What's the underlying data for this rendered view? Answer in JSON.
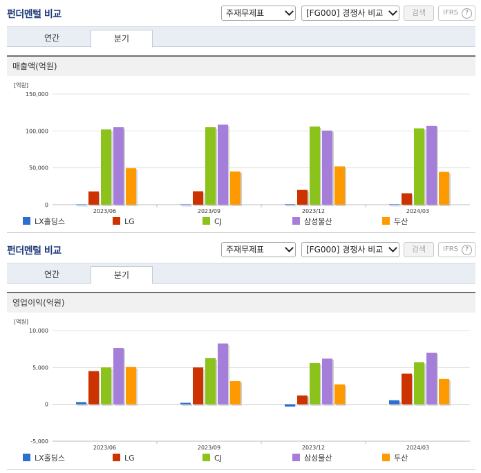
{
  "colors": {
    "lx": "#2c6fd1",
    "lg": "#cc3300",
    "cj": "#8cc21c",
    "samsung": "#a47ed8",
    "doosan": "#ff9900"
  },
  "panels": [
    {
      "title": "펀더멘털 비교",
      "select1": "주재무제표",
      "select2": "[FG000] 경쟁사 비교",
      "search_btn": "검색",
      "ifrs": "IFRS",
      "ifrs_help": "?",
      "tabs": [
        "연간",
        "분기"
      ],
      "section": "매출액(억원)",
      "unit": "[억원]",
      "chart_data": {
        "type": "bar",
        "categories": [
          "2023/06",
          "2023/09",
          "2023/12",
          "2024/03"
        ],
        "ylim": [
          0,
          150000
        ],
        "yticks": [
          "0",
          "50,000",
          "100,000",
          "150,000"
        ],
        "ytick_values": [
          0,
          50000,
          100000,
          150000
        ],
        "series": [
          {
            "name": "LX홀딩스",
            "values": [
              500,
              500,
              700,
              600
            ]
          },
          {
            "name": "LG",
            "values": [
              18000,
              18200,
              20000,
              15500
            ]
          },
          {
            "name": "CJ",
            "values": [
              102000,
              105000,
              106000,
              103500
            ]
          },
          {
            "name": "삼성물산",
            "values": [
              105000,
              108500,
              100500,
              107000
            ]
          },
          {
            "name": "두산",
            "values": [
              49500,
              45000,
              52000,
              44500
            ]
          }
        ],
        "legend_position": "bottom"
      }
    },
    {
      "title": "펀더멘털 비교",
      "select1": "주재무제표",
      "select2": "[FG000] 경쟁사 비교",
      "search_btn": "검색",
      "ifrs": "IFRS",
      "ifrs_help": "?",
      "tabs": [
        "연간",
        "분기"
      ],
      "section": "영업이익(억원)",
      "unit": "[억원]",
      "chart_data": {
        "type": "bar",
        "categories": [
          "2023/06",
          "2023/09",
          "2023/12",
          "2024/03"
        ],
        "ylim": [
          -5000,
          10000
        ],
        "yticks": [
          "-5,000",
          "0",
          "5,000",
          "10,000"
        ],
        "ytick_values": [
          -5000,
          0,
          5000,
          10000
        ],
        "series": [
          {
            "name": "LX홀딩스",
            "values": [
              300,
              200,
              -300,
              550
            ]
          },
          {
            "name": "LG",
            "values": [
              4500,
              5000,
              1200,
              4150
            ]
          },
          {
            "name": "CJ",
            "values": [
              5000,
              6250,
              5600,
              5700
            ]
          },
          {
            "name": "삼성물산",
            "values": [
              7650,
              8250,
              6200,
              7000
            ]
          },
          {
            "name": "두산",
            "values": [
              5050,
              3150,
              2700,
              3450
            ]
          }
        ],
        "legend_position": "bottom"
      }
    }
  ]
}
